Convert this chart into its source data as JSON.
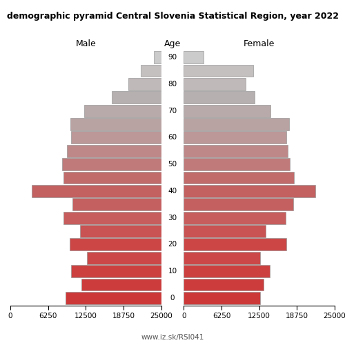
{
  "title": "demographic pyramid Central Slovenia Statistical Region, year 2022",
  "male_label": "Male",
  "female_label": "Female",
  "age_label": "Age",
  "url": "www.iz.sk/RSI041",
  "age_groups": [
    0,
    5,
    10,
    15,
    20,
    25,
    30,
    35,
    40,
    45,
    50,
    55,
    60,
    65,
    70,
    75,
    80,
    85,
    90
  ],
  "male_values": [
    15800,
    13200,
    14900,
    12300,
    15200,
    13500,
    16200,
    14700,
    21400,
    16200,
    16400,
    15600,
    14900,
    15100,
    12800,
    8200,
    5400,
    3400,
    1200
  ],
  "female_values": [
    12600,
    13200,
    14200,
    12600,
    17000,
    13600,
    16900,
    18100,
    21800,
    18200,
    17600,
    17200,
    17000,
    17400,
    14400,
    11700,
    10300,
    11500,
    3300
  ],
  "age_colors": {
    "0": "#cc3838",
    "5": "#cc3c3c",
    "10": "#cc4040",
    "15": "#cc4848",
    "20": "#cc4646",
    "25": "#c95252",
    "30": "#c75d5d",
    "35": "#c56060",
    "40": "#c36060",
    "45": "#c26b6b",
    "50": "#c07a7a",
    "55": "#be8888",
    "60": "#bc9898",
    "65": "#b9a2a2",
    "70": "#b8aaaa",
    "75": "#b6b0b0",
    "80": "#c0b9b9",
    "85": "#c5c0c0",
    "90": "#cbcbcb"
  },
  "xlim": 25000,
  "xtick_vals": [
    0,
    6250,
    12500,
    18750,
    25000
  ],
  "xtick_labels_male": [
    "25000",
    "18750",
    "12500",
    "6250",
    "0"
  ],
  "xtick_labels_female": [
    "0",
    "6250",
    "12500",
    "18750",
    "25000"
  ],
  "bar_height": 0.92,
  "edgecolor": "#999999",
  "linewidth": 0.5,
  "figsize": [
    5.0,
    5.0
  ],
  "dpi": 100
}
